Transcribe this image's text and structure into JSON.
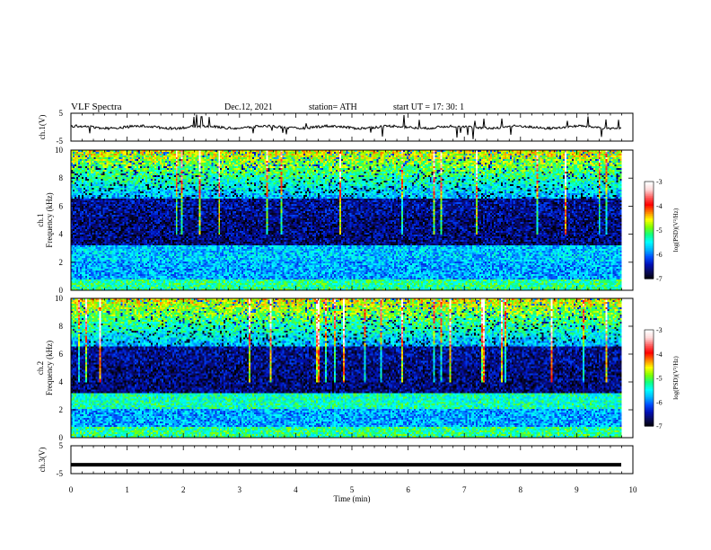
{
  "header": {
    "title": "VLF  Spectra",
    "date": "Dec.12, 2021",
    "station": "station= ATH",
    "start": "start  UT  =    17: 30: 1"
  },
  "colors": {
    "colormap": [
      "#000000",
      "#0a0a5a",
      "#0010b8",
      "#0050ff",
      "#00b8ff",
      "#00ffff",
      "#10ff80",
      "#80ff00",
      "#ffff00",
      "#ff8000",
      "#ff0000",
      "#ff6060",
      "#ffd8d8",
      "#ffffff"
    ],
    "trace": "#000000"
  },
  "chart_data": [
    {
      "type": "line",
      "name": "ch1-waveform",
      "ylabel": "ch.1(V)",
      "ylim": [
        -5,
        5
      ],
      "yticks": [
        "5",
        "-5"
      ],
      "xlim": [
        0,
        10
      ],
      "trace_level": 0,
      "description": "noisy voltage trace near 0 V with occasional spikes"
    },
    {
      "type": "heatmap",
      "name": "ch1-spectrogram",
      "ylabel": "ch.1\nFrequency (kHz)",
      "ylabel_lines": [
        "ch.1",
        "Frequency (kHz)"
      ],
      "ylim": [
        0,
        10
      ],
      "yticks": [
        "0",
        "2",
        "4",
        "6",
        "8",
        "10"
      ],
      "xlim": [
        0,
        10
      ],
      "data_extent_min": 9.8,
      "colorbar": {
        "label": "log(PSD)(V²/Hz)",
        "range": [
          -7,
          -3
        ],
        "ticks": [
          "-3",
          "-4",
          "-5",
          "-6",
          "-7"
        ]
      }
    },
    {
      "type": "heatmap",
      "name": "ch2-spectrogram",
      "ylabel": "ch.2\nFrequency (kHz)",
      "ylabel_lines": [
        "ch.2",
        "Frequency (kHz)"
      ],
      "ylim": [
        0,
        10
      ],
      "yticks": [
        "0",
        "2",
        "4",
        "6",
        "8",
        "10"
      ],
      "xlim": [
        0,
        10
      ],
      "data_extent_min": 9.8,
      "colorbar": {
        "label": "log(PSD)(V²/Hz)",
        "range": [
          -7,
          -3
        ],
        "ticks": [
          "-3",
          "-4",
          "-5",
          "-6",
          "-7"
        ]
      }
    },
    {
      "type": "line",
      "name": "ch3-waveform",
      "ylabel": "ch.3(V)",
      "ylim": [
        -5,
        5
      ],
      "yticks": [
        "5",
        "-5"
      ],
      "xlim": [
        0,
        10
      ],
      "trace_level": -1.8,
      "description": "flat thick trace slightly below 0 V"
    }
  ],
  "xaxis": {
    "label": "Time  (min)",
    "ticks": [
      "0",
      "1",
      "2",
      "3",
      "4",
      "5",
      "6",
      "7",
      "8",
      "9",
      "10"
    ],
    "range": [
      0,
      10
    ]
  }
}
